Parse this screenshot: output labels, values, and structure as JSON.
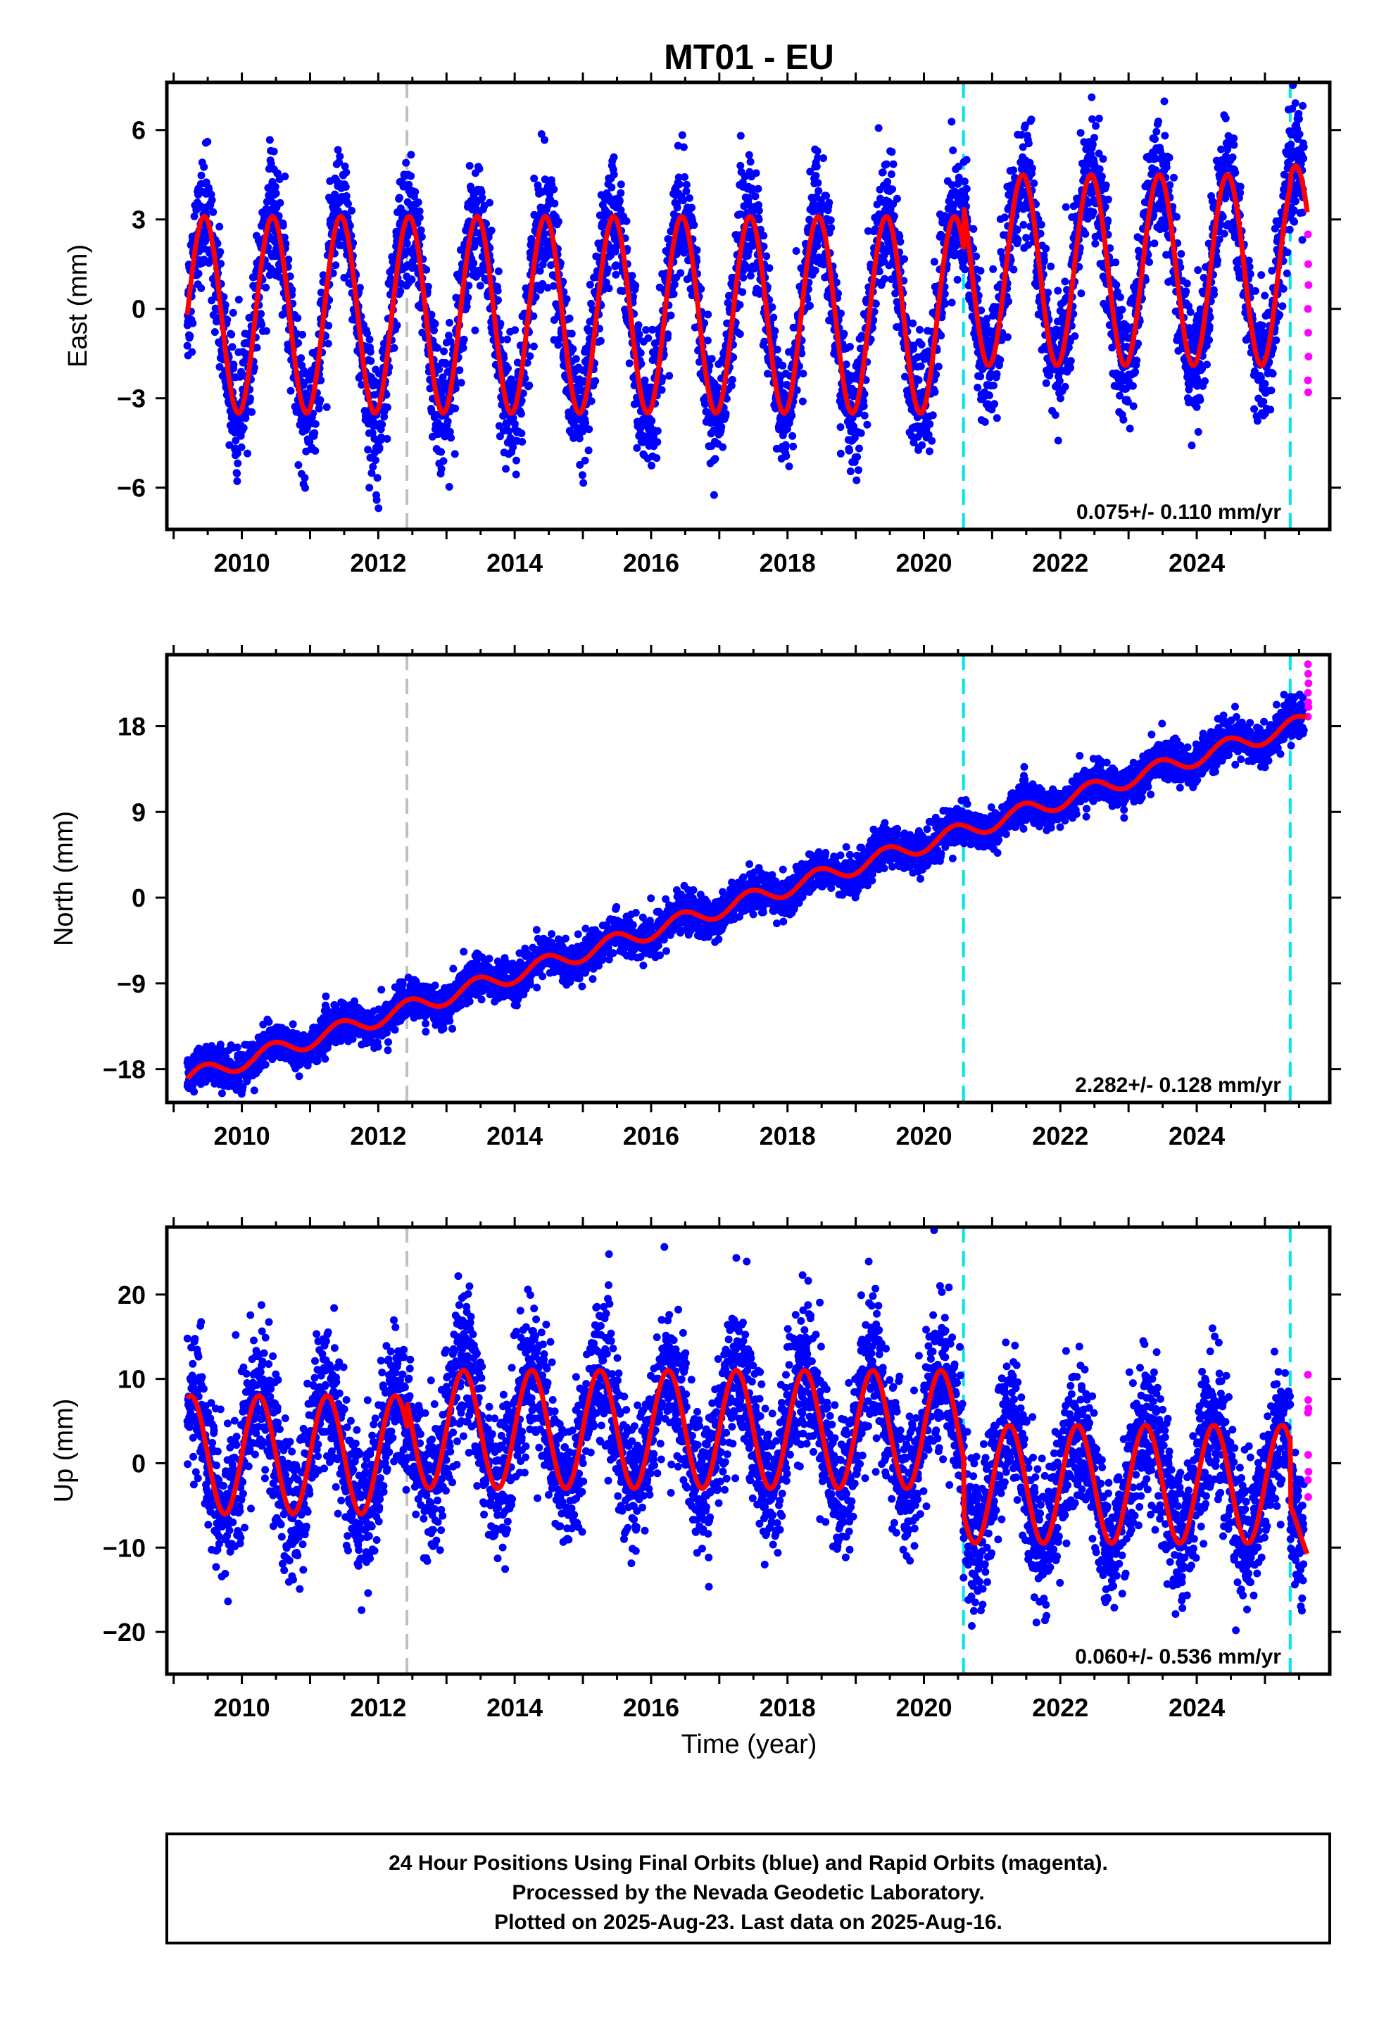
{
  "chart_data": {
    "type": "scatter",
    "title": "MT01 - EU",
    "xlabel": "Time (year)",
    "xlim": [
      2008.9,
      2025.95
    ],
    "x_ticks": [
      "2010",
      "2012",
      "2014",
      "2016",
      "2018",
      "2020",
      "2022",
      "2024"
    ],
    "event_lines": [
      {
        "x": 2012.42,
        "color": "#c0c0c0"
      },
      {
        "x": 2020.58,
        "color": "#00e5ee"
      },
      {
        "x": 2025.37,
        "color": "#00e5ee"
      }
    ],
    "data_span": {
      "start": 2009.2,
      "end": 2025.62,
      "rapid_start": 2025.4
    },
    "colors": {
      "final": "#0000ff",
      "rapid": "#ff00ff",
      "model": "#ff0000"
    },
    "panels": [
      {
        "component": "east",
        "ylabel": "East (mm)",
        "ylim": [
          -7.4,
          7.6
        ],
        "y_ticks": [
          -6,
          -3,
          0,
          3,
          6
        ],
        "y_tick_labels": [
          "−6",
          "−3",
          "0",
          "3",
          "6"
        ],
        "rate_text": "0.075+/- 0.110 mm/yr",
        "rate_mm_per_yr": 0.075,
        "model": {
          "segments": [
            {
              "start": 2009.2,
              "end": 2020.58,
              "offset": -0.2,
              "amp": 3.3
            },
            {
              "start": 2020.58,
              "end": 2025.37,
              "offset": 1.3,
              "amp": 3.2
            },
            {
              "start": 2025.37,
              "end": 2025.62,
              "offset": 1.8,
              "amp": 3.0
            }
          ],
          "phase": 0.15
        },
        "scatter_sd": 1.0,
        "rapid_values": [
          2.5,
          1.5,
          0.8,
          0,
          -0.8,
          -1.6,
          -2.4,
          -2.8
        ]
      },
      {
        "component": "north",
        "ylabel": "North (mm)",
        "ylim": [
          -21.5,
          25.5
        ],
        "y_ticks": [
          -18,
          -9,
          0,
          9,
          18
        ],
        "y_tick_labels": [
          "−18",
          "−9",
          "0",
          "9",
          "18"
        ],
        "rate_text": "2.282+/- 0.128 mm/yr",
        "rate_mm_per_yr": 2.282,
        "model": {
          "start_value": -19.0,
          "slope": 2.282,
          "amp": 0.9,
          "phase": 0.15
        },
        "scatter_sd": 1.0,
        "rapid_values": [
          24.5,
          23.5,
          22.5,
          21.5,
          20.5,
          20.0,
          19.0
        ]
      },
      {
        "component": "up",
        "ylabel": "Up (mm)",
        "ylim": [
          -25,
          28
        ],
        "y_ticks": [
          -20,
          -10,
          0,
          10,
          20
        ],
        "y_tick_labels": [
          "−20",
          "−10",
          "0",
          "10",
          "20"
        ],
        "rate_text": "0.060+/- 0.536 mm/yr",
        "rate_mm_per_yr": 0.06,
        "model": {
          "segments": [
            {
              "start": 2009.2,
              "end": 2012.42,
              "offset": 1.0,
              "amp": 7.0
            },
            {
              "start": 2012.42,
              "end": 2020.58,
              "offset": 4.0,
              "amp": 7.0
            },
            {
              "start": 2020.58,
              "end": 2025.37,
              "offset": -2.5,
              "amp": 7.0
            },
            {
              "start": 2025.37,
              "end": 2025.62,
              "offset": -8.0,
              "amp": 4.0
            }
          ],
          "phase": 0.35
        },
        "scatter_sd": 4.2,
        "rapid_values": [
          10.5,
          7.5,
          6.5,
          6,
          1,
          -1,
          -2,
          -4
        ]
      }
    ]
  },
  "caption": {
    "line1": "24 Hour Positions Using Final Orbits (blue) and Rapid Orbits (magenta).",
    "line2": "Processed by the Nevada Geodetic Laboratory.",
    "line3": "Plotted on 2025-Aug-23. Last data on 2025-Aug-16."
  }
}
